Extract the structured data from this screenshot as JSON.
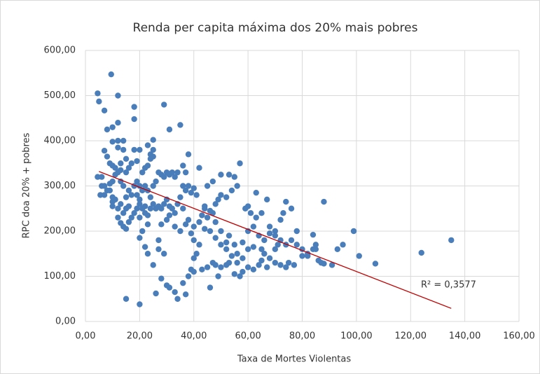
{
  "chart_data": {
    "type": "scatter",
    "title": "Renda per capita máxima dos 20% mais pobres",
    "x_label": "Taxa de Mortes Violentas",
    "y_label": "RPC doa 20% + pobres",
    "annotation": "R² = 0,3577",
    "color": "#4a7ebb",
    "trendline": {
      "x": [
        5,
        135
      ],
      "y": [
        332,
        29
      ],
      "color": "#c00000"
    },
    "xlim": [
      0,
      160
    ],
    "ylim": [
      0,
      600
    ],
    "xticks": [
      {
        "value": 0,
        "label": "0,00"
      },
      {
        "value": 20,
        "label": "20,00"
      },
      {
        "value": 40,
        "label": "40,00"
      },
      {
        "value": 60,
        "label": "60,00"
      },
      {
        "value": 80,
        "label": "80,00"
      },
      {
        "value": 100,
        "label": "100,00"
      },
      {
        "value": 120,
        "label": "120,00"
      },
      {
        "value": 140,
        "label": "140,00"
      },
      {
        "value": 160,
        "label": "160,00"
      }
    ],
    "yticks": [
      {
        "value": 0,
        "label": "0,00"
      },
      {
        "value": 100,
        "label": "100,00"
      },
      {
        "value": 200,
        "label": "200,00"
      },
      {
        "value": 300,
        "label": "300,00"
      },
      {
        "value": 400,
        "label": "400,00"
      },
      {
        "value": 500,
        "label": "500,00"
      },
      {
        "value": 600,
        "label": "600,00"
      }
    ],
    "grid": true,
    "x": [
      4.5,
      5,
      7,
      9.5,
      12,
      8,
      10,
      12,
      10,
      12,
      14,
      12,
      14,
      7,
      8,
      9,
      10,
      11,
      6,
      4.5,
      7,
      8,
      9,
      10,
      12,
      13,
      15,
      16,
      18,
      18,
      18,
      20,
      19,
      17,
      15,
      13,
      11,
      13,
      14,
      16,
      17,
      15,
      16,
      15,
      14,
      12,
      13,
      11,
      10,
      9,
      7,
      5.5,
      6,
      10,
      10,
      12,
      13,
      14,
      15,
      16,
      17,
      18,
      19,
      20,
      21,
      22,
      20,
      22,
      23,
      24,
      25,
      26,
      27,
      28,
      29,
      30,
      31,
      32,
      20,
      21,
      22,
      23,
      24,
      25,
      26,
      27,
      28,
      29,
      30,
      31,
      32,
      22,
      23,
      24,
      25,
      21,
      20,
      19,
      18,
      19,
      24,
      25,
      25,
      23,
      29,
      31,
      35,
      34,
      33,
      36,
      37,
      38,
      39,
      40,
      41,
      38,
      36,
      37,
      42,
      35,
      36,
      34,
      33,
      30,
      31,
      33,
      35,
      37,
      38,
      40,
      39,
      40,
      42,
      41,
      40,
      39,
      40,
      43,
      45,
      47,
      48,
      50,
      52,
      53,
      55,
      57,
      58,
      60,
      62,
      64,
      65,
      67,
      70,
      72,
      74,
      75,
      77,
      80,
      82,
      84,
      85,
      86,
      87,
      88,
      91,
      93,
      95,
      99,
      101,
      107,
      124,
      135,
      88,
      84,
      85,
      78,
      76,
      74,
      73,
      72,
      70,
      68,
      66,
      64,
      62,
      60,
      58,
      56,
      55,
      53,
      52,
      50,
      48,
      47,
      45,
      44,
      46,
      48,
      49,
      50,
      52,
      54,
      56,
      57,
      55,
      53,
      50,
      47,
      45,
      44,
      43,
      42,
      44,
      46,
      48,
      50,
      52,
      54,
      56,
      58,
      60,
      62,
      61,
      59,
      60,
      63,
      65,
      63,
      67,
      68,
      70,
      72,
      74,
      76,
      78,
      80,
      82,
      65,
      66,
      68,
      70,
      71,
      38,
      36,
      34,
      37,
      33,
      31,
      30,
      28,
      29,
      27,
      25,
      23,
      22,
      20,
      21,
      26,
      20,
      15,
      46,
      49,
      28,
      27,
      23
    ],
    "values": [
      505,
      487,
      467,
      547,
      500,
      425,
      430,
      440,
      398,
      400,
      400,
      385,
      380,
      378,
      365,
      350,
      345,
      340,
      320,
      320,
      300,
      290,
      305,
      310,
      330,
      335,
      330,
      340,
      380,
      448,
      475,
      380,
      355,
      350,
      360,
      350,
      325,
      310,
      300,
      290,
      280,
      275,
      255,
      250,
      240,
      250,
      260,
      270,
      275,
      290,
      280,
      280,
      300,
      265,
      255,
      230,
      218,
      210,
      205,
      220,
      230,
      240,
      250,
      260,
      250,
      255,
      230,
      240,
      235,
      250,
      260,
      250,
      255,
      250,
      260,
      270,
      255,
      250,
      270,
      290,
      300,
      290,
      275,
      300,
      310,
      330,
      325,
      320,
      330,
      325,
      330,
      340,
      345,
      360,
      365,
      330,
      300,
      310,
      300,
      280,
      370,
      380,
      402,
      390,
      480,
      425,
      435,
      330,
      320,
      300,
      290,
      300,
      285,
      295,
      280,
      370,
      345,
      330,
      340,
      275,
      250,
      260,
      240,
      225,
      235,
      210,
      200,
      215,
      225,
      210,
      195,
      180,
      170,
      150,
      140,
      115,
      110,
      115,
      120,
      130,
      125,
      120,
      125,
      130,
      105,
      100,
      110,
      120,
      115,
      125,
      135,
      120,
      130,
      125,
      120,
      130,
      125,
      145,
      145,
      160,
      170,
      135,
      130,
      128,
      125,
      160,
      170,
      200,
      145,
      128,
      152,
      180,
      265,
      192,
      160,
      200,
      250,
      265,
      240,
      225,
      200,
      195,
      180,
      190,
      165,
      160,
      175,
      150,
      170,
      190,
      175,
      200,
      220,
      240,
      230,
      250,
      245,
      260,
      270,
      280,
      275,
      290,
      300,
      350,
      320,
      325,
      325,
      310,
      300,
      255,
      235,
      220,
      205,
      200,
      185,
      170,
      160,
      145,
      130,
      140,
      200,
      210,
      240,
      250,
      255,
      230,
      240,
      285,
      270,
      210,
      190,
      180,
      170,
      180,
      170,
      160,
      150,
      160,
      150,
      140,
      160,
      170,
      100,
      85,
      50,
      60,
      65,
      75,
      80,
      95,
      150,
      160,
      125,
      150,
      165,
      185,
      200,
      62,
      38,
      50,
      75,
      100,
      215,
      180,
      215
    ]
  }
}
